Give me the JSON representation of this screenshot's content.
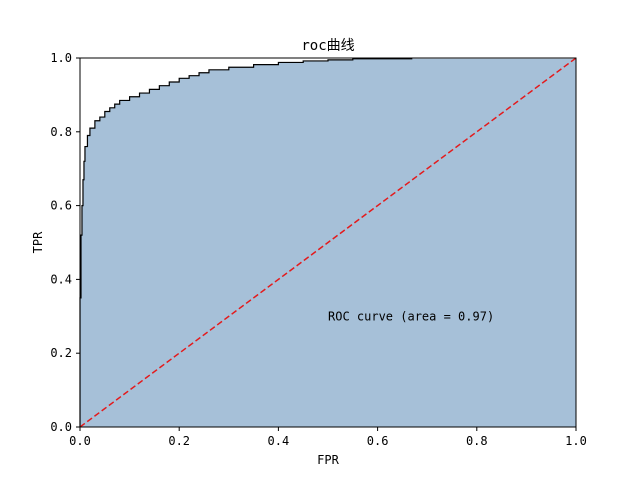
{
  "chart_data": {
    "type": "area",
    "title": "roc曲线",
    "xlabel": "FPR",
    "ylabel": "TPR",
    "xlim": [
      0.0,
      1.0
    ],
    "ylim": [
      0.0,
      1.0
    ],
    "grid": false,
    "xticks": [
      "0.0",
      "0.2",
      "0.4",
      "0.6",
      "0.8",
      "1.0"
    ],
    "yticks": [
      "0.0",
      "0.2",
      "0.4",
      "0.6",
      "0.8",
      "1.0"
    ],
    "annotation": "ROC curve (area = 0.97)",
    "colors": {
      "fill": "#a6c0d8",
      "roc_line": "#000000",
      "diagonal": "#e41a1c"
    },
    "series": [
      {
        "type": "roc-step",
        "x": [
          0.0,
          0.0,
          0.002,
          0.002,
          0.004,
          0.004,
          0.006,
          0.006,
          0.008,
          0.008,
          0.01,
          0.01,
          0.015,
          0.015,
          0.02,
          0.02,
          0.03,
          0.03,
          0.04,
          0.04,
          0.05,
          0.05,
          0.06,
          0.06,
          0.07,
          0.07,
          0.08,
          0.08,
          0.1,
          0.1,
          0.12,
          0.12,
          0.14,
          0.14,
          0.16,
          0.16,
          0.18,
          0.18,
          0.2,
          0.2,
          0.22,
          0.22,
          0.24,
          0.24,
          0.26,
          0.26,
          0.3,
          0.3,
          0.35,
          0.35,
          0.4,
          0.4,
          0.45,
          0.45,
          0.5,
          0.5,
          0.55,
          0.55,
          0.67,
          0.67
        ],
        "y": [
          0.0,
          0.35,
          0.35,
          0.52,
          0.52,
          0.6,
          0.6,
          0.67,
          0.67,
          0.72,
          0.72,
          0.76,
          0.76,
          0.79,
          0.79,
          0.81,
          0.81,
          0.83,
          0.83,
          0.84,
          0.84,
          0.855,
          0.855,
          0.865,
          0.865,
          0.875,
          0.875,
          0.885,
          0.885,
          0.895,
          0.895,
          0.905,
          0.905,
          0.915,
          0.915,
          0.925,
          0.925,
          0.935,
          0.935,
          0.945,
          0.945,
          0.952,
          0.952,
          0.96,
          0.96,
          0.968,
          0.968,
          0.975,
          0.975,
          0.982,
          0.982,
          0.988,
          0.988,
          0.992,
          0.992,
          0.995,
          0.995,
          0.998,
          0.998,
          0.998
        ]
      },
      {
        "type": "reference-diagonal",
        "x": [
          0.0,
          1.0
        ],
        "y": [
          0.0,
          1.0
        ]
      }
    ]
  }
}
